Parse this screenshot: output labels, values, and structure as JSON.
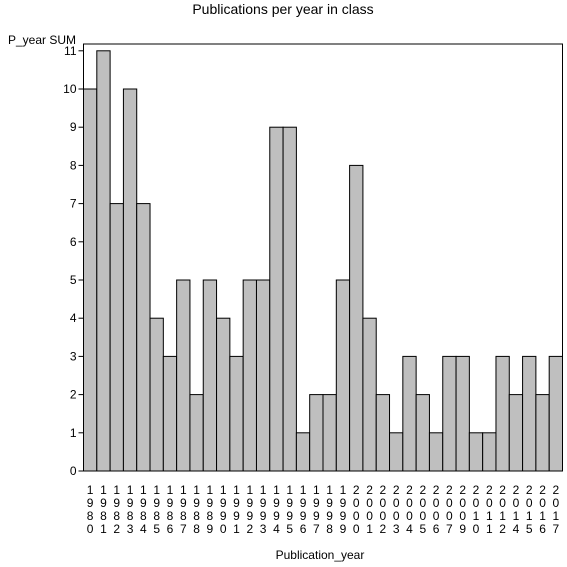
{
  "chart_data": {
    "type": "bar",
    "title": "Publications per year in class",
    "xlabel": "Publication_year",
    "ylabel": "P_year SUM",
    "ylim": [
      0,
      11
    ],
    "yticks": [
      0,
      1,
      2,
      3,
      4,
      5,
      6,
      7,
      8,
      9,
      10,
      11
    ],
    "grid": false,
    "legend": "none",
    "bar_color": "#bfbfbf",
    "categories": [
      "1980",
      "1981",
      "1982",
      "1983",
      "1984",
      "1985",
      "1986",
      "1987",
      "1988",
      "1989",
      "1990",
      "1991",
      "1992",
      "1993",
      "1994",
      "1995",
      "1996",
      "1997",
      "1998",
      "1999",
      "2000",
      "2001",
      "2002",
      "2003",
      "2004",
      "2005",
      "2006",
      "2007",
      "2009",
      "2010",
      "2011",
      "2012",
      "2014",
      "2015",
      "2016",
      "2017"
    ],
    "values": [
      10,
      11,
      7,
      10,
      7,
      4,
      3,
      5,
      2,
      5,
      4,
      3,
      5,
      5,
      9,
      9,
      1,
      2,
      2,
      5,
      8,
      4,
      2,
      1,
      3,
      2,
      1,
      3,
      3,
      1,
      1,
      3,
      2,
      3,
      2,
      3
    ]
  }
}
